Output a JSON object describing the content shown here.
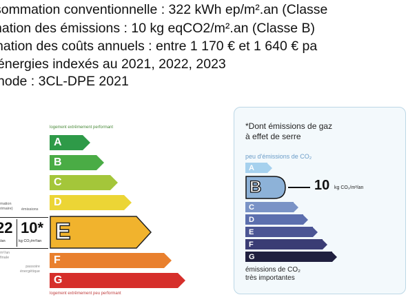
{
  "text_lines": [
    "sommation conventionnelle : 322 kWh ep/m².an (Classe",
    "nation des émissions : 10 kg eqCO2/m².an (Classe B)",
    "nation des coûts annuels : entre 1 170 € et 1 640 € pa",
    "énergies indexés au  2021, 2022, 2023",
    "hode : 3CL-DPE 2021"
  ],
  "energy_label": {
    "top_caption": "logement extrêmement performant",
    "bottom_caption": "logement extrêmement peu performant",
    "col_left_caption": "mation\nrimaire)",
    "col_right_caption": "émissions",
    "current_consumption": "22",
    "current_consumption_unit": "/an",
    "current_emissions": "10*",
    "current_emissions_unit": "kg CO₂/m²/an",
    "side_caption_1": "m²/an\nfinale",
    "side_caption_2": "passoire\nénergétique",
    "current_class": "E",
    "classes": [
      {
        "letter": "A",
        "color": "#2e9a48"
      },
      {
        "letter": "B",
        "color": "#4aac45"
      },
      {
        "letter": "C",
        "color": "#a4c63a"
      },
      {
        "letter": "D",
        "color": "#ecd535"
      },
      {
        "letter": "E",
        "color": "#f1b32d"
      },
      {
        "letter": "F",
        "color": "#e9802e"
      },
      {
        "letter": "G",
        "color": "#d62f2b"
      }
    ]
  },
  "ges_label": {
    "note": "*Dont émissions de gaz\nà effet de serre",
    "top_caption": "peu d'émissions de CO₂",
    "bottom_caption": "émissions de CO₂\ntrès importantes",
    "current_class": "B",
    "current_value": "10",
    "current_unit": "kg CO₂/m²/an",
    "classes": [
      {
        "letter": "A",
        "color": "#a6d1ee"
      },
      {
        "letter": "B",
        "color": "#8db2d8"
      },
      {
        "letter": "C",
        "color": "#7a93c6"
      },
      {
        "letter": "D",
        "color": "#5c6fae"
      },
      {
        "letter": "E",
        "color": "#4b5594"
      },
      {
        "letter": "F",
        "color": "#3a3c74"
      },
      {
        "letter": "G",
        "color": "#20203f"
      }
    ]
  }
}
